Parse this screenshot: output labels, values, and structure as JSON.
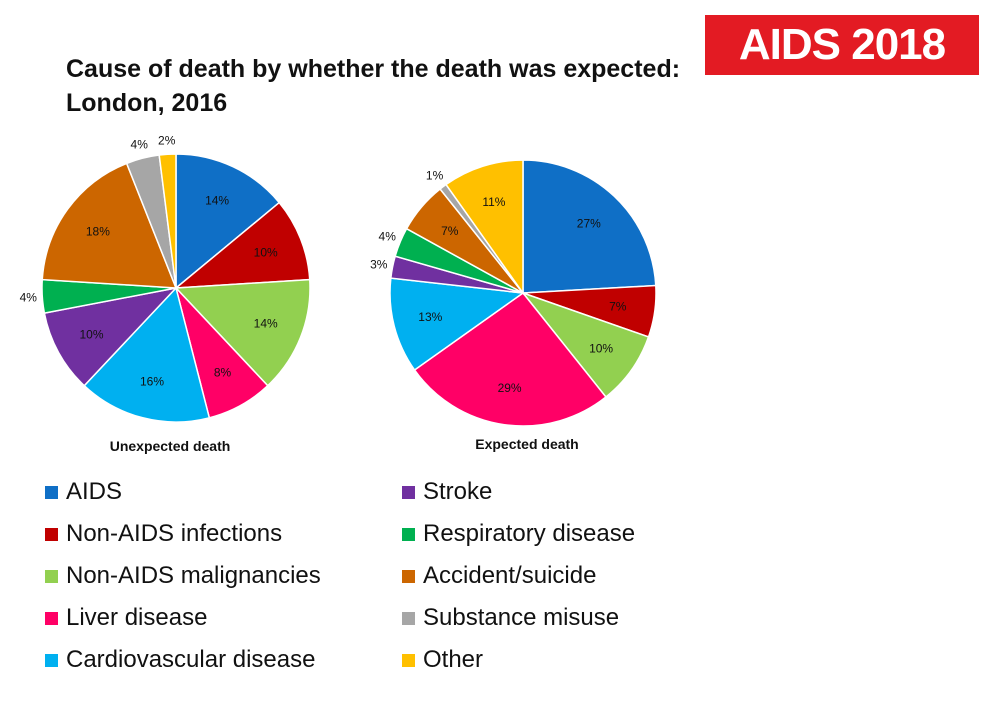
{
  "title": "Cause of death by whether the death was expected: London, 2016",
  "brand": "AIDS 2018",
  "chart_data": [
    {
      "type": "pie",
      "caption": "Unexpected death",
      "slices": [
        {
          "category": "AIDS",
          "value": 14,
          "label": "14%"
        },
        {
          "category": "Non-AIDS infections",
          "value": 10,
          "label": "10%"
        },
        {
          "category": "Non-AIDS malignancies",
          "value": 14,
          "label": "14%"
        },
        {
          "category": "Liver disease",
          "value": 8,
          "label": "8%"
        },
        {
          "category": "Cardiovascular disease",
          "value": 16,
          "label": "16%"
        },
        {
          "category": "Stroke",
          "value": 10,
          "label": "10%"
        },
        {
          "category": "Respiratory disease",
          "value": 4,
          "label": "4%"
        },
        {
          "category": "Accident/suicide",
          "value": 18,
          "label": "18%"
        },
        {
          "category": "Substance misuse",
          "value": 4,
          "label": "4%"
        },
        {
          "category": "Other",
          "value": 2,
          "label": "2%"
        }
      ]
    },
    {
      "type": "pie",
      "caption": "Expected death",
      "slices": [
        {
          "category": "AIDS",
          "value": 27,
          "label": "27%"
        },
        {
          "category": "Non-AIDS infections",
          "value": 7,
          "label": "7%"
        },
        {
          "category": "Non-AIDS malignancies",
          "value": 10,
          "label": "10%"
        },
        {
          "category": "Liver disease",
          "value": 29,
          "label": "29%"
        },
        {
          "category": "Cardiovascular disease",
          "value": 13,
          "label": "13%"
        },
        {
          "category": "Stroke",
          "value": 3,
          "label": "3%"
        },
        {
          "category": "Respiratory disease",
          "value": 4,
          "label": "4%"
        },
        {
          "category": "Accident/suicide",
          "value": 7,
          "label": "7%"
        },
        {
          "category": "Substance misuse",
          "value": 1,
          "label": "1%"
        },
        {
          "category": "Other",
          "value": 11,
          "label": "11%"
        }
      ]
    }
  ],
  "legend": [
    {
      "label": "AIDS",
      "color": "#0f6fc6"
    },
    {
      "label": "Non-AIDS infections",
      "color": "#c00000"
    },
    {
      "label": "Non-AIDS malignancies",
      "color": "#92d050"
    },
    {
      "label": "Liver disease",
      "color": "#ff0066"
    },
    {
      "label": "Cardiovascular disease",
      "color": "#00b0f0"
    },
    {
      "label": "Stroke",
      "color": "#7030a0"
    },
    {
      "label": "Respiratory disease",
      "color": "#00b050"
    },
    {
      "label": "Accident/suicide",
      "color": "#cc6600"
    },
    {
      "label": "Substance misuse",
      "color": "#a6a6a6"
    },
    {
      "label": "Other",
      "color": "#ffc000"
    }
  ]
}
